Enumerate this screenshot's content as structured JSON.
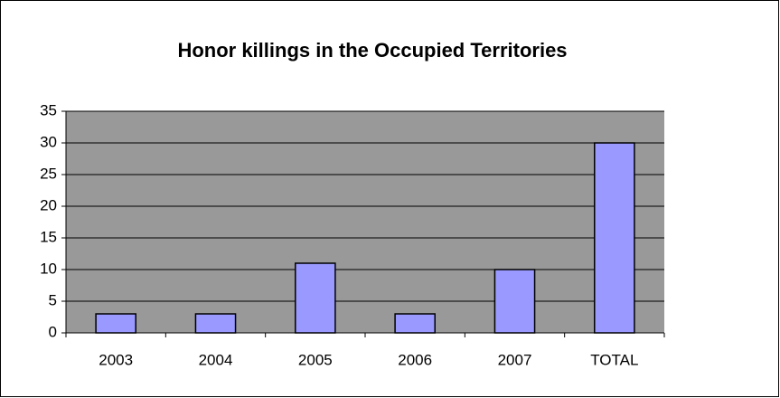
{
  "chart_data": {
    "type": "bar",
    "title": "Honor killings in the Occupied Territories",
    "categories": [
      "2003",
      "2004",
      "2005",
      "2006",
      "2007",
      "TOTAL"
    ],
    "values": [
      3,
      3,
      11,
      3,
      10,
      30
    ],
    "color": "#9999ff",
    "ylim": [
      0,
      35
    ],
    "yticks": [
      0,
      5,
      10,
      15,
      20,
      25,
      30,
      35
    ],
    "grid": true
  }
}
